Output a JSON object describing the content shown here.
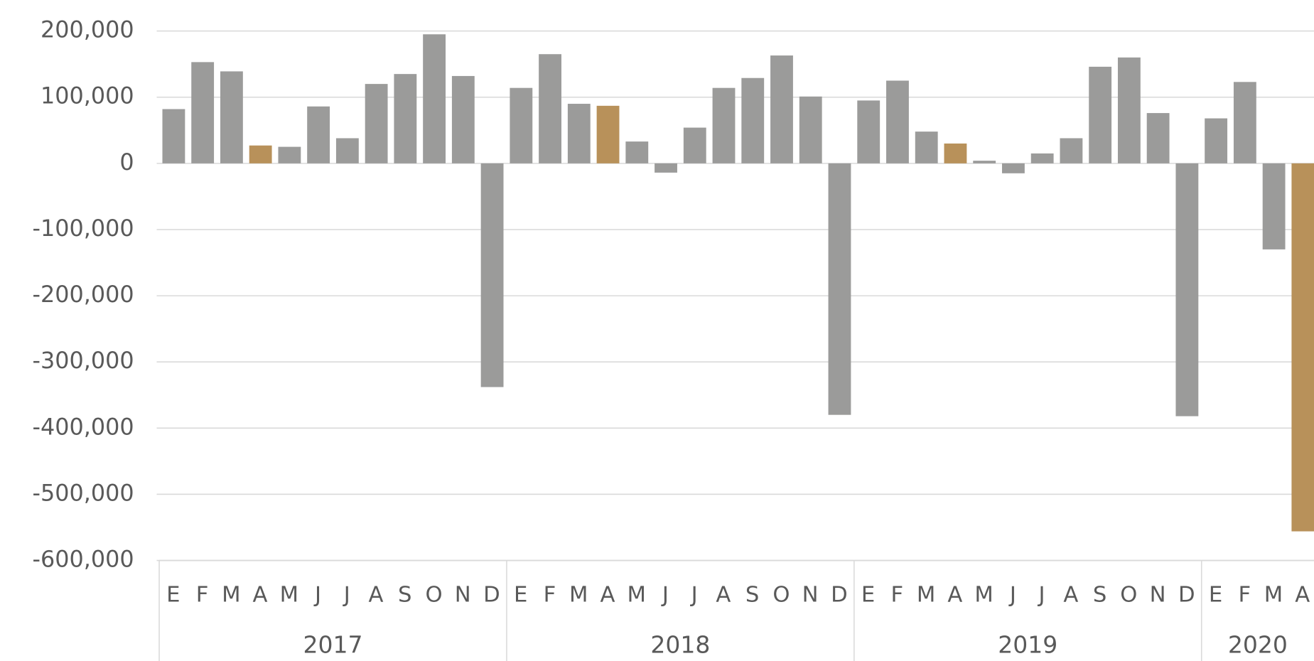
{
  "chart_data": {
    "type": "bar",
    "groups": [
      {
        "name": "2017",
        "categories": [
          "E",
          "F",
          "M",
          "A",
          "M",
          "J",
          "J",
          "A",
          "S",
          "O",
          "N",
          "D"
        ],
        "values": [
          82000,
          153000,
          139000,
          27000,
          25000,
          86000,
          38000,
          120000,
          135000,
          195000,
          132000,
          -338000
        ],
        "colors": [
          "#9b9b9a",
          "#9b9b9a",
          "#9b9b9a",
          "#b8915a",
          "#9b9b9a",
          "#9b9b9a",
          "#9b9b9a",
          "#9b9b9a",
          "#9b9b9a",
          "#9b9b9a",
          "#9b9b9a",
          "#9b9b9a"
        ]
      },
      {
        "name": "2018",
        "categories": [
          "E",
          "F",
          "M",
          "A",
          "M",
          "J",
          "J",
          "A",
          "S",
          "O",
          "N",
          "D"
        ],
        "values": [
          114000,
          165000,
          90000,
          87000,
          33000,
          -14000,
          54000,
          114000,
          129000,
          163000,
          101000,
          -380000
        ],
        "colors": [
          "#9b9b9a",
          "#9b9b9a",
          "#9b9b9a",
          "#b8915a",
          "#9b9b9a",
          "#9b9b9a",
          "#9b9b9a",
          "#9b9b9a",
          "#9b9b9a",
          "#9b9b9a",
          "#9b9b9a",
          "#9b9b9a"
        ]
      },
      {
        "name": "2019",
        "categories": [
          "E",
          "F",
          "M",
          "A",
          "M",
          "J",
          "J",
          "A",
          "S",
          "O",
          "N",
          "D"
        ],
        "values": [
          95000,
          125000,
          48000,
          30000,
          4000,
          -15000,
          15000,
          38000,
          146000,
          160000,
          76000,
          -382000
        ],
        "colors": [
          "#9b9b9a",
          "#9b9b9a",
          "#9b9b9a",
          "#b8915a",
          "#9b9b9a",
          "#9b9b9a",
          "#9b9b9a",
          "#9b9b9a",
          "#9b9b9a",
          "#9b9b9a",
          "#9b9b9a",
          "#9b9b9a"
        ]
      },
      {
        "name": "2020",
        "categories": [
          "E",
          "F",
          "M",
          "A"
        ],
        "values": [
          68000,
          123000,
          -130000,
          -556000
        ],
        "colors": [
          "#9b9b9a",
          "#9b9b9a",
          "#9b9b9a",
          "#b8915a"
        ]
      }
    ],
    "ylim": [
      -600000,
      200000
    ],
    "yticks": [
      {
        "value": 200000,
        "label": "200,000"
      },
      {
        "value": 100000,
        "label": "100,000"
      },
      0,
      {
        "value": -100000,
        "label": "-100,000"
      },
      {
        "value": -200000,
        "label": "-200,000"
      },
      {
        "value": -300000,
        "label": "-300,000"
      },
      {
        "value": -400000,
        "label": "-400,000"
      },
      {
        "value": -500000,
        "label": "-500,000"
      },
      {
        "value": -600000,
        "label": "-600,000"
      }
    ],
    "grid": true
  }
}
